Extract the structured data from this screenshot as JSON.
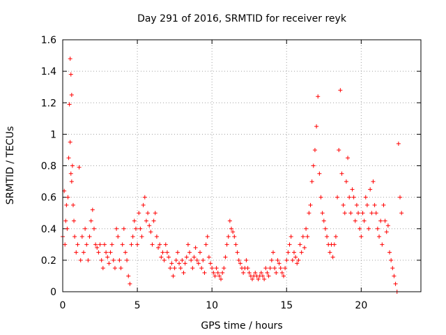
{
  "chart_data": {
    "type": "scatter",
    "title": "Day 291 of 2016, SRMTID for receiver reyk",
    "xlabel": "GPS time / hours",
    "ylabel": "SRMTID / TECUs",
    "xlim": [
      0,
      24
    ],
    "ylim": [
      0,
      1.6
    ],
    "xticks": [
      0,
      5,
      10,
      15,
      20
    ],
    "xtick_labels": [
      "0",
      "5",
      "10",
      "15",
      "20"
    ],
    "yticks": [
      0,
      0.2,
      0.4,
      0.6,
      0.8,
      1.0,
      1.2,
      1.4,
      1.6
    ],
    "ytick_labels": [
      "0",
      "0.2",
      "0.4",
      "0.6",
      "0.8",
      "1",
      "1.2",
      "1.4",
      "1.6"
    ],
    "grid": true,
    "marker": "+",
    "color": "#ff0000",
    "series": [
      {
        "name": "SRMTID",
        "x": [
          0.0,
          0.1,
          0.15,
          0.2,
          0.25,
          0.3,
          0.35,
          0.4,
          0.45,
          0.5,
          0.5,
          0.55,
          0.55,
          0.6,
          0.6,
          0.65,
          0.7,
          0.75,
          0.8,
          0.9,
          1.0,
          1.1,
          1.2,
          1.3,
          1.4,
          1.5,
          1.6,
          1.7,
          1.8,
          1.9,
          2.0,
          2.1,
          2.2,
          2.3,
          2.4,
          2.5,
          2.6,
          2.7,
          2.8,
          2.9,
          3.0,
          3.1,
          3.2,
          3.3,
          3.4,
          3.5,
          3.6,
          3.7,
          3.8,
          3.9,
          4.0,
          4.1,
          4.2,
          4.3,
          4.4,
          4.5,
          4.6,
          4.7,
          4.8,
          4.9,
          5.0,
          5.1,
          5.2,
          5.3,
          5.4,
          5.5,
          5.6,
          5.7,
          5.8,
          5.9,
          6.0,
          6.1,
          6.2,
          6.3,
          6.4,
          6.5,
          6.6,
          6.7,
          6.8,
          6.9,
          7.0,
          7.1,
          7.2,
          7.3,
          7.4,
          7.5,
          7.6,
          7.7,
          7.8,
          7.9,
          8.0,
          8.1,
          8.2,
          8.3,
          8.4,
          8.5,
          8.6,
          8.7,
          8.8,
          8.9,
          9.0,
          9.1,
          9.2,
          9.3,
          9.4,
          9.5,
          9.6,
          9.7,
          9.8,
          9.9,
          10.0,
          10.1,
          10.2,
          10.3,
          10.4,
          10.5,
          10.6,
          10.7,
          10.8,
          10.9,
          11.0,
          11.1,
          11.2,
          11.3,
          11.4,
          11.5,
          11.6,
          11.7,
          11.8,
          11.9,
          12.0,
          12.1,
          12.2,
          12.3,
          12.4,
          12.5,
          12.6,
          12.7,
          12.8,
          12.9,
          13.0,
          13.1,
          13.2,
          13.3,
          13.4,
          13.5,
          13.6,
          13.7,
          13.8,
          13.9,
          14.0,
          14.1,
          14.2,
          14.3,
          14.4,
          14.5,
          14.6,
          14.7,
          14.8,
          14.9,
          15.0,
          15.1,
          15.2,
          15.3,
          15.4,
          15.5,
          15.6,
          15.7,
          15.8,
          15.9,
          16.0,
          16.1,
          16.2,
          16.3,
          16.4,
          16.5,
          16.6,
          16.7,
          16.8,
          16.9,
          17.0,
          17.1,
          17.2,
          17.3,
          17.4,
          17.5,
          17.6,
          17.7,
          17.8,
          17.9,
          18.0,
          18.1,
          18.2,
          18.3,
          18.4,
          18.5,
          18.6,
          18.7,
          18.8,
          18.9,
          19.0,
          19.1,
          19.2,
          19.3,
          19.4,
          19.5,
          19.6,
          19.7,
          19.8,
          19.9,
          20.0,
          20.1,
          20.2,
          20.3,
          20.4,
          20.5,
          20.6,
          20.7,
          20.8,
          20.9,
          21.0,
          21.1,
          21.2,
          21.3,
          21.4,
          21.5,
          21.6,
          21.7,
          21.8,
          21.9,
          22.0,
          22.1,
          22.2,
          22.3,
          22.4,
          22.5,
          22.6,
          22.7
        ],
        "y": [
          0.35,
          0.64,
          0.3,
          0.45,
          0.55,
          0.4,
          0.6,
          0.85,
          1.19,
          1.48,
          0.95,
          1.38,
          0.75,
          1.25,
          0.7,
          0.8,
          0.55,
          0.45,
          0.35,
          0.25,
          0.3,
          0.79,
          0.2,
          0.35,
          0.25,
          0.4,
          0.3,
          0.2,
          0.35,
          0.45,
          0.52,
          0.4,
          0.3,
          0.28,
          0.25,
          0.3,
          0.2,
          0.15,
          0.3,
          0.25,
          0.22,
          0.18,
          0.25,
          0.3,
          0.2,
          0.15,
          0.4,
          0.35,
          0.2,
          0.15,
          0.3,
          0.4,
          0.25,
          0.2,
          0.1,
          0.05,
          0.3,
          0.35,
          0.45,
          0.4,
          0.3,
          0.5,
          0.4,
          0.35,
          0.55,
          0.6,
          0.45,
          0.5,
          0.42,
          0.38,
          0.3,
          0.45,
          0.5,
          0.35,
          0.28,
          0.3,
          0.22,
          0.25,
          0.2,
          0.3,
          0.25,
          0.22,
          0.15,
          0.18,
          0.1,
          0.15,
          0.2,
          0.25,
          0.18,
          0.15,
          0.2,
          0.12,
          0.18,
          0.22,
          0.3,
          0.25,
          0.2,
          0.15,
          0.22,
          0.28,
          0.2,
          0.18,
          0.25,
          0.15,
          0.2,
          0.12,
          0.3,
          0.35,
          0.22,
          0.18,
          0.15,
          0.12,
          0.1,
          0.15,
          0.12,
          0.1,
          0.08,
          0.12,
          0.15,
          0.22,
          0.3,
          0.35,
          0.45,
          0.4,
          0.38,
          0.35,
          0.3,
          0.25,
          0.2,
          0.18,
          0.15,
          0.12,
          0.15,
          0.2,
          0.15,
          0.12,
          0.1,
          0.08,
          0.1,
          0.12,
          0.1,
          0.08,
          0.1,
          0.12,
          0.1,
          0.08,
          0.15,
          0.12,
          0.1,
          0.15,
          0.2,
          0.25,
          0.15,
          0.12,
          0.2,
          0.18,
          0.15,
          0.12,
          0.1,
          0.15,
          0.2,
          0.25,
          0.3,
          0.35,
          0.2,
          0.25,
          0.22,
          0.18,
          0.2,
          0.3,
          0.25,
          0.35,
          0.28,
          0.4,
          0.35,
          0.5,
          0.55,
          0.7,
          0.8,
          0.9,
          1.05,
          1.24,
          0.75,
          0.6,
          0.5,
          0.45,
          0.4,
          0.35,
          0.3,
          0.25,
          0.3,
          0.22,
          0.3,
          0.35,
          0.6,
          0.9,
          1.28,
          0.75,
          0.55,
          0.5,
          0.7,
          0.85,
          0.6,
          0.5,
          0.65,
          0.6,
          0.45,
          0.55,
          0.5,
          0.4,
          0.35,
          0.5,
          0.45,
          0.6,
          0.55,
          0.4,
          0.65,
          0.5,
          0.7,
          0.55,
          0.5,
          0.4,
          0.35,
          0.45,
          0.3,
          0.55,
          0.45,
          0.38,
          0.42,
          0.25,
          0.2,
          0.15,
          0.1,
          0.05,
          0.0,
          0.94,
          0.6,
          0.5
        ]
      }
    ]
  }
}
